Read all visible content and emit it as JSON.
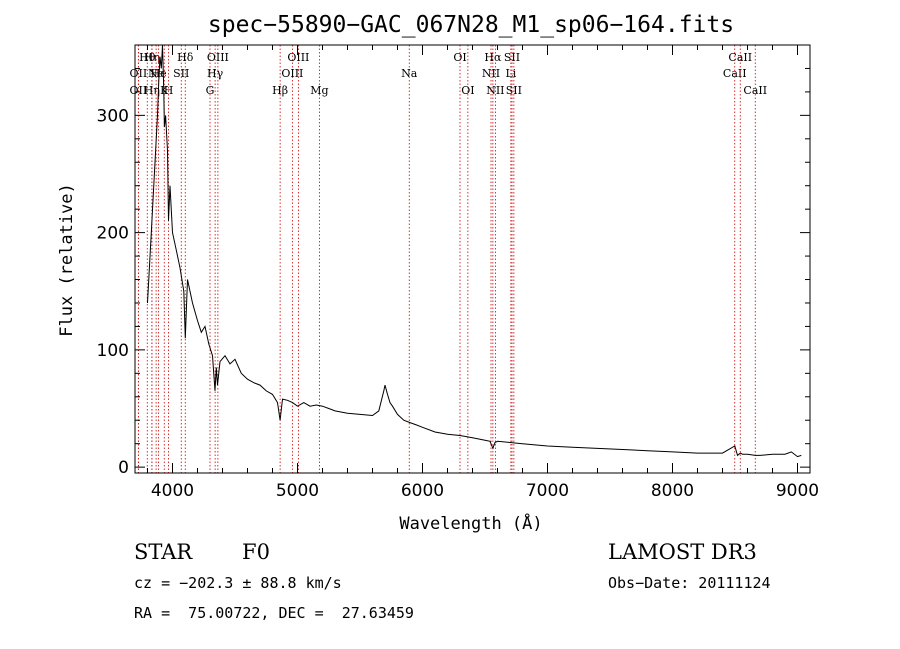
{
  "chart_data": {
    "type": "line",
    "title": "spec−55890−GAC_067N28_M1_sp06−164.fits",
    "xlabel": "Wavelength (Å)",
    "ylabel": "Flux (relative)",
    "xlim": [
      3700,
      9100
    ],
    "ylim": [
      -5,
      360
    ],
    "xticks": [
      4000,
      5000,
      6000,
      7000,
      8000,
      9000
    ],
    "yticks": [
      0,
      100,
      200,
      300
    ],
    "series": [
      {
        "name": "spectrum",
        "color": "#000000",
        "x": [
          3800,
          3830,
          3860,
          3880,
          3890,
          3900,
          3910,
          3920,
          3930,
          3935,
          3945,
          3960,
          3968,
          3980,
          4000,
          4030,
          4060,
          4090,
          4102,
          4120,
          4160,
          4200,
          4230,
          4260,
          4290,
          4320,
          4340,
          4350,
          4360,
          4380,
          4420,
          4460,
          4500,
          4550,
          4600,
          4650,
          4700,
          4750,
          4800,
          4840,
          4861,
          4880,
          4920,
          4960,
          5000,
          5050,
          5100,
          5150,
          5200,
          5250,
          5300,
          5400,
          5500,
          5600,
          5650,
          5690,
          5700,
          5720,
          5740,
          5760,
          5800,
          5850,
          5900,
          5950,
          6000,
          6100,
          6200,
          6300,
          6400,
          6500,
          6540,
          6563,
          6580,
          6600,
          6700,
          6800,
          6900,
          7000,
          7200,
          7400,
          7600,
          7800,
          8000,
          8200,
          8400,
          8498,
          8520,
          8542,
          8560,
          8600,
          8662,
          8700,
          8800,
          8900,
          8950,
          9000,
          9030
        ],
        "values": [
          140,
          200,
          260,
          300,
          330,
          350,
          340,
          360,
          320,
          290,
          300,
          270,
          210,
          240,
          200,
          185,
          170,
          150,
          110,
          160,
          140,
          125,
          115,
          120,
          105,
          95,
          65,
          85,
          70,
          90,
          95,
          88,
          92,
          80,
          75,
          72,
          70,
          65,
          62,
          55,
          40,
          58,
          57,
          55,
          52,
          55,
          52,
          53,
          52,
          50,
          48,
          46,
          45,
          44,
          48,
          65,
          70,
          62,
          55,
          52,
          45,
          40,
          38,
          36,
          34,
          30,
          28,
          27,
          25,
          23,
          22,
          16,
          21,
          22,
          21,
          20,
          19,
          18,
          17,
          16,
          15,
          14,
          13,
          12,
          12,
          18,
          10,
          12,
          11,
          11,
          10,
          10,
          11,
          11,
          13,
          9,
          10
        ]
      }
    ],
    "lines": [
      {
        "wavelength": 3727,
        "label": "OII",
        "row": 2
      },
      {
        "wavelength": 3727,
        "label": "OII",
        "row": 3
      },
      {
        "wavelength": 3798,
        "label": "Hθ",
        "row": 1
      },
      {
        "wavelength": 3835,
        "label": "Hη",
        "row": 1
      },
      {
        "wavelength": 3835,
        "label": "Hη",
        "row": 3
      },
      {
        "wavelength": 3869,
        "label": "Ne",
        "row": 2
      },
      {
        "wavelength": 3889,
        "label": "He",
        "row": 2
      },
      {
        "wavelength": 3934,
        "label": "K",
        "row": 3
      },
      {
        "wavelength": 3968,
        "label": "H",
        "row": 3
      },
      {
        "wavelength": 4070,
        "label": "SII",
        "row": 2
      },
      {
        "wavelength": 4102,
        "label": "Hδ",
        "row": 1
      },
      {
        "wavelength": 4300,
        "label": "G",
        "row": 3
      },
      {
        "wavelength": 4341,
        "label": "Hγ",
        "row": 2
      },
      {
        "wavelength": 4363,
        "label": "OIII",
        "row": 1
      },
      {
        "wavelength": 4861,
        "label": "Hβ",
        "row": 3
      },
      {
        "wavelength": 4959,
        "label": "OIII",
        "row": 2
      },
      {
        "wavelength": 5007,
        "label": "OIII",
        "row": 1
      },
      {
        "wavelength": 5175,
        "label": "Mg",
        "row": 3
      },
      {
        "wavelength": 5894,
        "label": "Na",
        "row": 2
      },
      {
        "wavelength": 6300,
        "label": "OI",
        "row": 1
      },
      {
        "wavelength": 6363,
        "label": "OI",
        "row": 3
      },
      {
        "wavelength": 6548,
        "label": "NII",
        "row": 2
      },
      {
        "wavelength": 6563,
        "label": "Hα",
        "row": 1
      },
      {
        "wavelength": 6583,
        "label": "NII",
        "row": 3
      },
      {
        "wavelength": 6707,
        "label": "Li",
        "row": 2
      },
      {
        "wavelength": 6716,
        "label": "SII",
        "row": 1
      },
      {
        "wavelength": 6731,
        "label": "SII",
        "row": 3
      },
      {
        "wavelength": 8498,
        "label": "CaII",
        "row": 2
      },
      {
        "wavelength": 8542,
        "label": "CaII",
        "row": 1
      },
      {
        "wavelength": 8662,
        "label": "CaII",
        "row": 3
      }
    ]
  },
  "info": {
    "class": "STAR",
    "subclass": "F0",
    "survey": "LAMOST DR3",
    "cz": "cz = −202.3 ± 88.8 km/s",
    "obs_date": "Obs−Date: 20111124",
    "radec": "RA =  75.00722, DEC =  27.63459"
  },
  "colors": {
    "line_marker": "#cc0000",
    "spectrum": "#000000"
  }
}
